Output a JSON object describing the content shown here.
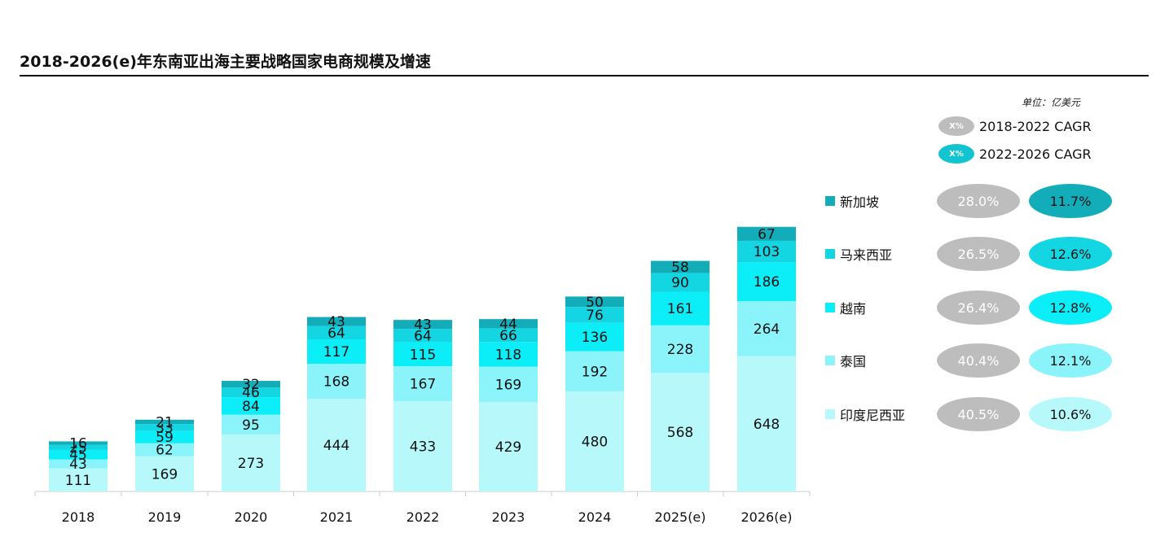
{
  "title": "2018-2026(e)年东南亚出海主要战略国家电商规模及增速",
  "unit_label": "单位：亿美元",
  "cagr_keys": [
    {
      "badge": "X%",
      "label": "2018-2022 CAGR",
      "color": "#bdbdbd"
    },
    {
      "badge": "X%",
      "label": "2022-2026 CAGR",
      "color": "#11c4cf"
    }
  ],
  "colors": {
    "新加坡": "#12adb8",
    "马来西亚": "#13d6e2",
    "越南": "#0beef7",
    "泰国": "#8af4fa",
    "印度尼西亚": "#b7f8fb"
  },
  "cagr_rows": [
    {
      "country": "新加坡",
      "cagr_2018_2022": "28.0%",
      "cagr_2022_2026": "11.7%",
      "text_color": "#111111"
    },
    {
      "country": "马来西亚",
      "cagr_2018_2022": "26.5%",
      "cagr_2022_2026": "12.6%",
      "text_color": "#111111"
    },
    {
      "country": "越南",
      "cagr_2018_2022": "26.4%",
      "cagr_2022_2026": "12.8%",
      "text_color": "#111111"
    },
    {
      "country": "泰国",
      "cagr_2018_2022": "40.4%",
      "cagr_2022_2026": "12.1%",
      "text_color": "#111111"
    },
    {
      "country": "印度尼西亚",
      "cagr_2018_2022": "40.5%",
      "cagr_2022_2026": "10.6%",
      "text_color": "#111111"
    }
  ],
  "chart_data": {
    "type": "bar",
    "stacked": true,
    "title": "2018-2026(e)年东南亚出海主要战略国家电商规模及增速",
    "ylabel": "单位：亿美元",
    "categories": [
      "2018",
      "2019",
      "2020",
      "2021",
      "2022",
      "2023",
      "2024",
      "2025(e)",
      "2026(e)"
    ],
    "series": [
      {
        "name": "印度尼西亚",
        "values": [
          111,
          169,
          273,
          444,
          433,
          429,
          480,
          568,
          648
        ]
      },
      {
        "name": "泰国",
        "values": [
          43,
          62,
          95,
          168,
          167,
          169,
          192,
          228,
          264
        ]
      },
      {
        "name": "越南",
        "values": [
          45,
          59,
          84,
          117,
          115,
          118,
          136,
          161,
          186
        ]
      },
      {
        "name": "马来西亚",
        "values": [
          25,
          33,
          46,
          64,
          64,
          66,
          76,
          90,
          103
        ]
      },
      {
        "name": "新加坡",
        "values": [
          16,
          21,
          32,
          43,
          43,
          44,
          50,
          58,
          67
        ]
      }
    ],
    "grid": false,
    "legend_position": "right"
  }
}
